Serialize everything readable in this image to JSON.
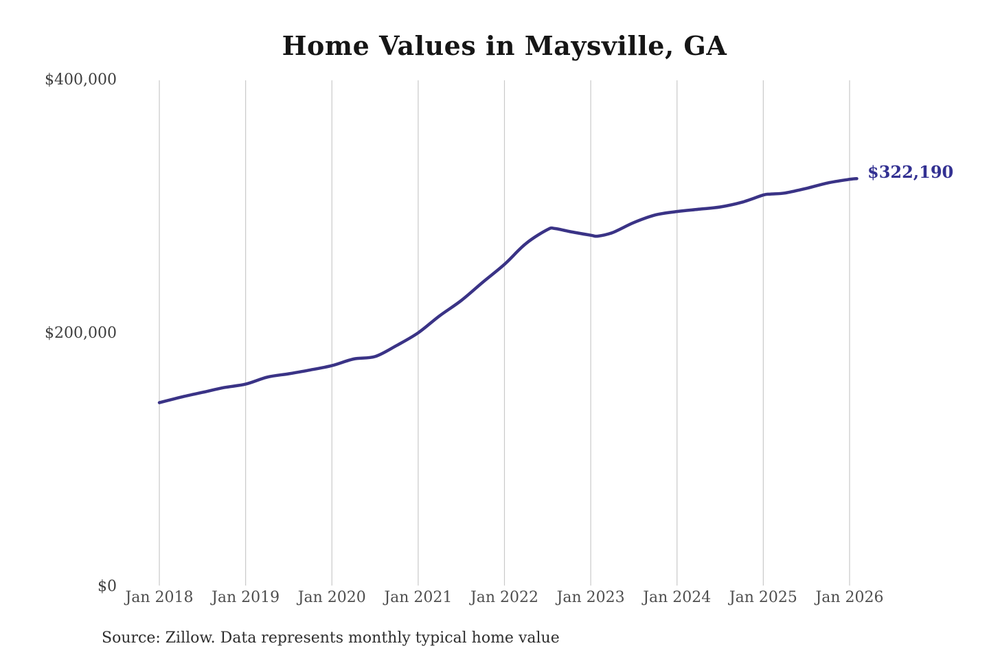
{
  "title": "Home Values in Maysville, GA",
  "source_note": "Source: Zillow. Data represents monthly typical home value",
  "latest_value_label": "$322,190",
  "colors": {
    "line": "#3a3386",
    "latest_label": "#333192",
    "grid": "#c9c9c9"
  },
  "chart_data": {
    "type": "line",
    "title": "Home Values in Maysville, GA",
    "series_name": "Monthly typical home value (USD)",
    "x": [
      "2018-01",
      "2018-04",
      "2018-07",
      "2018-10",
      "2019-01",
      "2019-04",
      "2019-07",
      "2019-10",
      "2020-01",
      "2020-04",
      "2020-07",
      "2020-10",
      "2021-01",
      "2021-04",
      "2021-07",
      "2021-10",
      "2022-01",
      "2022-04",
      "2022-07",
      "2022-08",
      "2022-10",
      "2023-01",
      "2023-02",
      "2023-04",
      "2023-07",
      "2023-10",
      "2024-01",
      "2024-04",
      "2024-07",
      "2024-10",
      "2025-01",
      "2025-02",
      "2025-04",
      "2025-07",
      "2025-10",
      "2026-01",
      "2026-02"
    ],
    "y": [
      145400,
      149700,
      153500,
      157300,
      160000,
      165500,
      168200,
      171200,
      174600,
      179800,
      181800,
      190500,
      200500,
      214000,
      226000,
      240500,
      254500,
      271000,
      282000,
      282800,
      280500,
      277500,
      276800,
      279500,
      287500,
      293500,
      296200,
      298000,
      299800,
      303500,
      309200,
      310000,
      310800,
      314500,
      318800,
      321600,
      322190
    ],
    "latest_value": 322190,
    "annotation": "$322,190",
    "x_tick_labels": [
      "Jan 2018",
      "Jan 2019",
      "Jan 2020",
      "Jan 2021",
      "Jan 2022",
      "Jan 2023",
      "Jan 2024",
      "Jan 2025",
      "Jan 2026"
    ],
    "y_tick_labels": [
      "$0",
      "$200,000",
      "$400,000"
    ],
    "y_tick_values": [
      0,
      200000,
      400000
    ],
    "ylim": [
      0,
      400000
    ],
    "xlabel": "",
    "ylabel": "",
    "grid": "vertical-only",
    "legend": "none"
  }
}
